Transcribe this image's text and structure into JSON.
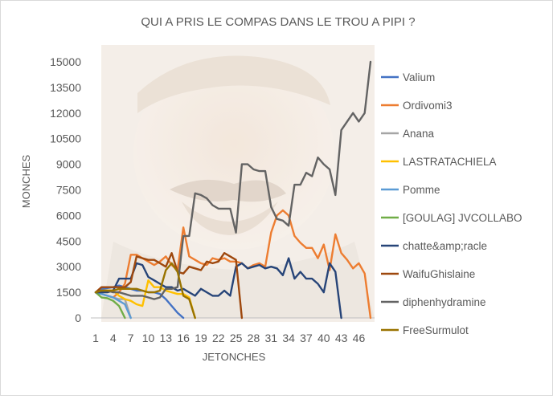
{
  "chart_data": {
    "type": "line",
    "title": "QUI A PRIS LE COMPAS DANS LE TROU A PIPI ?",
    "xlabel": "JETONCHES",
    "ylabel": "MONCHES",
    "ylim": [
      0,
      15000
    ],
    "y_ticks": [
      "0",
      "1500",
      "3000",
      "4500",
      "6000",
      "7500",
      "9000",
      "10500",
      "12000",
      "13500",
      "15000"
    ],
    "x_ticks": [
      "1",
      "4",
      "7",
      "10",
      "13",
      "16",
      "19",
      "22",
      "25",
      "28",
      "31",
      "34",
      "37",
      "40",
      "43",
      "46"
    ],
    "grid": false,
    "legend_position": "right",
    "background_image": "laughing man photo (faded)",
    "series": [
      {
        "name": "Valium",
        "color": "#4472c4",
        "x": [
          1,
          2,
          3,
          4,
          5,
          6,
          7,
          8,
          9,
          10,
          11,
          12,
          13,
          14,
          15,
          16
        ],
        "y": [
          1500,
          1700,
          1750,
          1800,
          1900,
          1800,
          1700,
          1600,
          1600,
          1500,
          1500,
          1400,
          1100,
          700,
          300,
          0
        ]
      },
      {
        "name": "Ordivomi3",
        "color": "#ed7d31",
        "x": [
          1,
          2,
          3,
          4,
          5,
          6,
          7,
          8,
          9,
          10,
          11,
          12,
          13,
          14,
          15,
          16,
          17,
          18,
          19,
          20,
          21,
          22,
          23,
          24,
          25,
          26,
          27,
          28,
          29,
          30,
          31,
          32,
          33,
          34,
          35,
          36,
          37,
          38,
          39,
          40,
          41,
          42,
          43,
          44,
          45,
          46,
          47,
          48
        ],
        "y": [
          1500,
          1400,
          1300,
          1200,
          1500,
          2000,
          3700,
          3700,
          3500,
          3300,
          3100,
          3300,
          3600,
          3100,
          2800,
          5300,
          3600,
          3400,
          3200,
          3100,
          3500,
          3400,
          3500,
          3300,
          3300,
          3200,
          2900,
          3100,
          3200,
          3000,
          5000,
          6000,
          6300,
          6000,
          4800,
          4400,
          4100,
          4100,
          3500,
          4300,
          2800,
          4900,
          3800,
          3400,
          2900,
          3200,
          2600,
          0
        ]
      },
      {
        "name": "Anana",
        "color": "#a5a5a5",
        "x": [
          1,
          2,
          3,
          4,
          5,
          6,
          7
        ],
        "y": [
          1500,
          1400,
          1300,
          1200,
          1100,
          1100,
          0
        ]
      },
      {
        "name": "LASTRATACHIELA",
        "color": "#ffc000",
        "x": [
          1,
          2,
          3,
          4,
          5,
          6,
          7,
          8,
          9,
          10,
          11,
          12,
          13,
          14,
          15,
          16,
          17,
          18
        ],
        "y": [
          1500,
          1600,
          1600,
          1600,
          1300,
          1100,
          1000,
          800,
          700,
          2200,
          1800,
          1800,
          1600,
          1500,
          1400,
          1400,
          1200,
          0
        ]
      },
      {
        "name": "Pomme",
        "color": "#5b9bd5",
        "x": [
          1,
          2,
          3,
          4,
          5,
          6,
          7
        ],
        "y": [
          1500,
          1400,
          1300,
          1200,
          1000,
          800,
          0
        ]
      },
      {
        "name": "[GOULAG] JVCOLLABO",
        "color": "#70ad47",
        "x": [
          1,
          2,
          3,
          4,
          5,
          6
        ],
        "y": [
          1500,
          1200,
          1150,
          1000,
          700,
          0
        ]
      },
      {
        "name": "chatte&amp;racle",
        "color": "#264478",
        "x": [
          1,
          2,
          3,
          4,
          5,
          6,
          7,
          8,
          9,
          10,
          11,
          12,
          13,
          14,
          15,
          16,
          17,
          18,
          19,
          20,
          21,
          22,
          23,
          24,
          25,
          26,
          27,
          28,
          29,
          30,
          31,
          32,
          33,
          34,
          35,
          36,
          37,
          38,
          39,
          40,
          41,
          42,
          43
        ],
        "y": [
          1500,
          1500,
          1500,
          1600,
          2300,
          2300,
          2300,
          3200,
          3100,
          2400,
          2200,
          2000,
          1800,
          1800,
          1600,
          1700,
          1500,
          1300,
          1700,
          1500,
          1300,
          1300,
          1600,
          1300,
          3000,
          3200,
          2900,
          3000,
          3100,
          2900,
          3000,
          2900,
          2500,
          3500,
          2300,
          2700,
          2300,
          2300,
          2000,
          1500,
          3200,
          2700,
          0
        ]
      },
      {
        "name": "WaifuGhislaine",
        "color": "#9e480e",
        "x": [
          1,
          2,
          3,
          4,
          5,
          6,
          7,
          8,
          9,
          10,
          11,
          12,
          13,
          14,
          15,
          16,
          17,
          18,
          19,
          20,
          21,
          22,
          23,
          24,
          25,
          26
        ],
        "y": [
          1500,
          1800,
          1800,
          1800,
          1800,
          1800,
          2100,
          3600,
          3500,
          3400,
          3400,
          3200,
          3000,
          3800,
          2700,
          2600,
          3000,
          2900,
          2800,
          3300,
          3200,
          3300,
          3800,
          3600,
          3400,
          0
        ]
      },
      {
        "name": "diphenhydramine",
        "color": "#636363",
        "x": [
          1,
          2,
          3,
          4,
          5,
          6,
          7,
          8,
          9,
          10,
          11,
          12,
          13,
          14,
          15,
          16,
          17,
          18,
          19,
          20,
          21,
          22,
          23,
          24,
          25,
          26,
          27,
          28,
          29,
          30,
          31,
          32,
          33,
          34,
          35,
          36,
          37,
          38,
          39,
          40,
          41,
          42,
          43,
          44,
          45,
          46,
          47,
          48
        ],
        "y": [
          1500,
          1600,
          1600,
          1500,
          1500,
          1400,
          1300,
          1300,
          1300,
          1200,
          1100,
          1200,
          1700,
          1700,
          1800,
          4800,
          4800,
          7300,
          7200,
          7000,
          6600,
          6400,
          6400,
          6400,
          5000,
          9000,
          9000,
          8700,
          8600,
          8600,
          6500,
          5800,
          5700,
          5400,
          7800,
          7800,
          8500,
          8300,
          9400,
          9000,
          8700,
          7200,
          11000,
          11500,
          12000,
          11500,
          12000,
          15000
        ]
      },
      {
        "name": "FreeSurmulot",
        "color": "#997300",
        "x": [
          1,
          2,
          3,
          4,
          5,
          6,
          7,
          8,
          9,
          10,
          11,
          12,
          13,
          14,
          15,
          16,
          17,
          18
        ],
        "y": [
          1500,
          1600,
          1600,
          1600,
          1700,
          1700,
          1700,
          1700,
          1600,
          1500,
          1500,
          1600,
          2800,
          3200,
          2700,
          1300,
          1100,
          0
        ]
      }
    ]
  }
}
